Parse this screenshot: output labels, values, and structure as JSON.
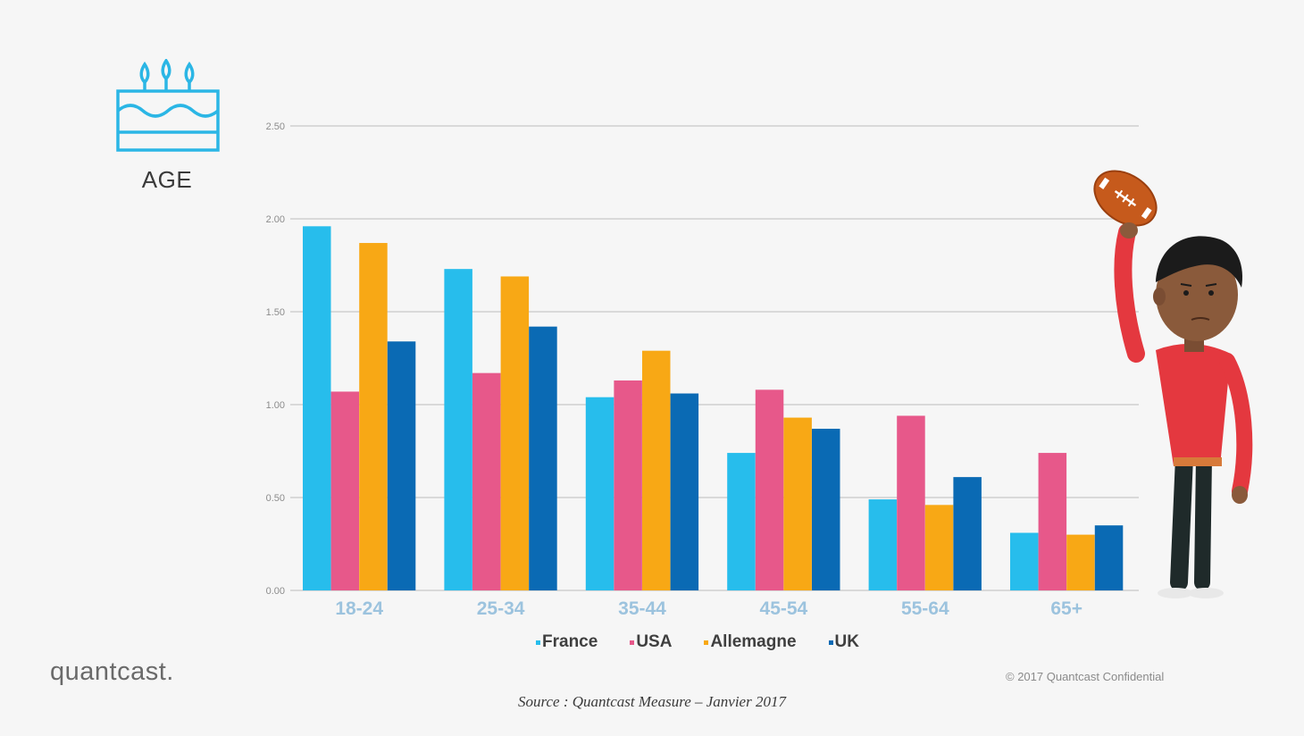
{
  "header": {
    "icon": "birthday-cake-icon",
    "label": "AGE"
  },
  "chart_data": {
    "type": "bar",
    "categories": [
      "18-24",
      "25-34",
      "35-44",
      "45-54",
      "55-64",
      "65+"
    ],
    "series": [
      {
        "name": "France",
        "color": "#27bdec",
        "values": [
          1.96,
          1.73,
          1.04,
          0.74,
          0.49,
          0.31
        ]
      },
      {
        "name": "USA",
        "color": "#e7588a",
        "values": [
          1.07,
          1.17,
          1.13,
          1.08,
          0.94,
          0.74
        ]
      },
      {
        "name": "Allemagne",
        "color": "#f8a815",
        "values": [
          1.87,
          1.69,
          1.29,
          0.93,
          0.46,
          0.3
        ]
      },
      {
        "name": "UK",
        "color": "#0a6ab4",
        "values": [
          1.34,
          1.42,
          1.06,
          0.87,
          0.61,
          0.35
        ]
      }
    ],
    "yticks": [
      "2.50",
      "2.00",
      "1.50",
      "1.00",
      "0.50",
      "0.00"
    ],
    "ylim": [
      0,
      2.5
    ],
    "grid": true,
    "legend": "bottom-center"
  },
  "footer": {
    "logo": "quantcast.",
    "copyright": "© 2017 Quantcast Confidential",
    "source": "Source : Quantcast Measure – Janvier 2017"
  },
  "illustration": {
    "icon": "man-holding-football-illustration"
  }
}
